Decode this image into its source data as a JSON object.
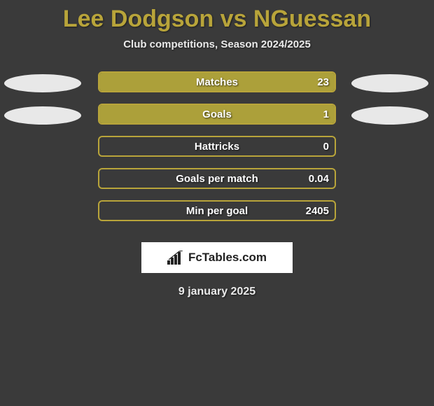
{
  "title": "Lee Dodgson vs NGuessan",
  "subtitle": "Club competitions, Season 2024/2025",
  "date": "9 january 2025",
  "logo_text": "FcTables.com",
  "colors": {
    "background": "#3a3a3a",
    "accent": "#b8a43a",
    "bar_fill": "#aca03a",
    "bar_border": "#b8a43a",
    "ellipse": "#e8e8e8",
    "text_light": "#eaeaea",
    "text_white": "#ffffff"
  },
  "chart": {
    "type": "bar",
    "bar_outer_width": 340,
    "rows": [
      {
        "label": "Matches",
        "value": "23",
        "fill_pct": 100,
        "show_ellipses": true
      },
      {
        "label": "Goals",
        "value": "1",
        "fill_pct": 100,
        "show_ellipses": true
      },
      {
        "label": "Hattricks",
        "value": "0",
        "fill_pct": 0,
        "show_ellipses": false
      },
      {
        "label": "Goals per match",
        "value": "0.04",
        "fill_pct": 0,
        "show_ellipses": false
      },
      {
        "label": "Min per goal",
        "value": "2405",
        "fill_pct": 0,
        "show_ellipses": false
      }
    ]
  }
}
